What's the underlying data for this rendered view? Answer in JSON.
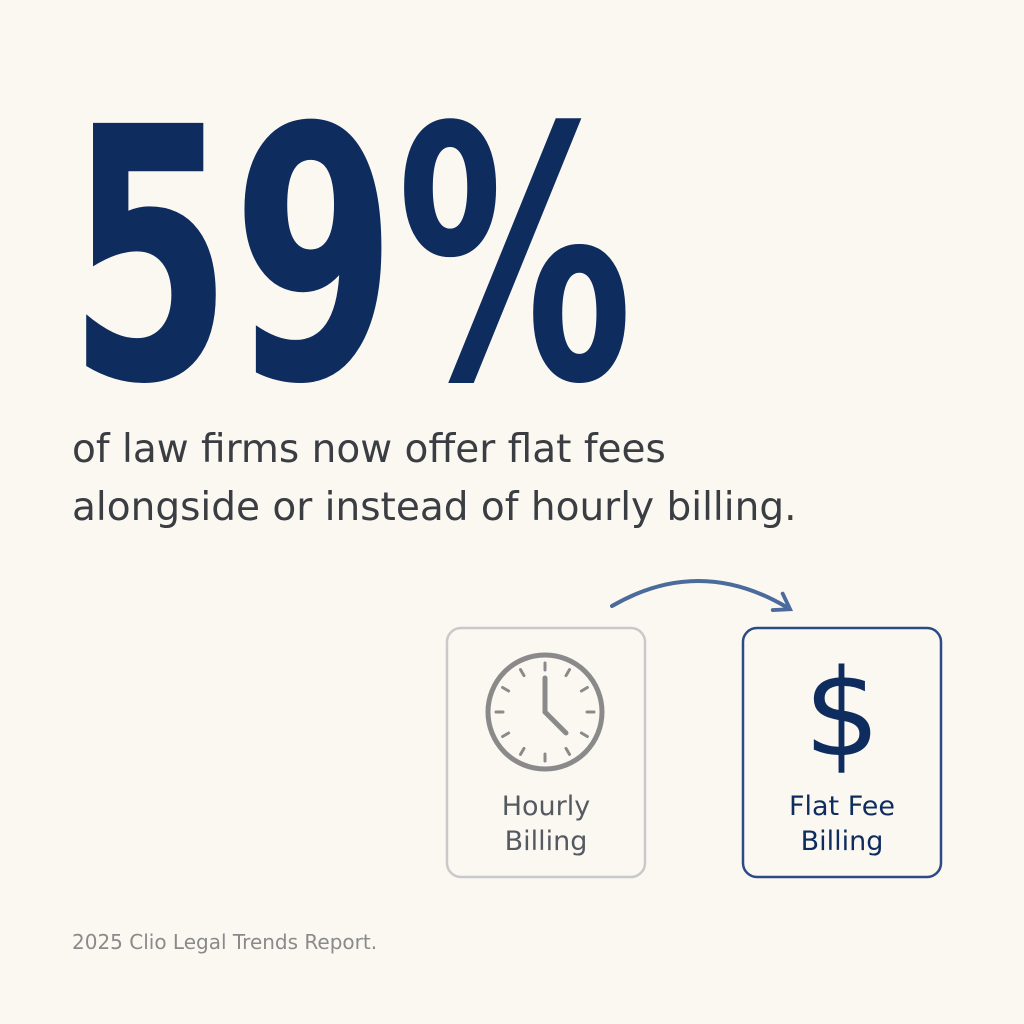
{
  "stat": "59%",
  "description": {
    "lines": [
      "of law firms now offer flat fees",
      "alongside or instead of hourly billing."
    ]
  },
  "cards": [
    {
      "label": [
        "Hourly",
        "Billing"
      ]
    },
    {
      "icon": "$",
      "label": [
        "Flat Fee",
        "Billing"
      ]
    }
  ],
  "source": "2025 Clio Legal Trends Report."
}
